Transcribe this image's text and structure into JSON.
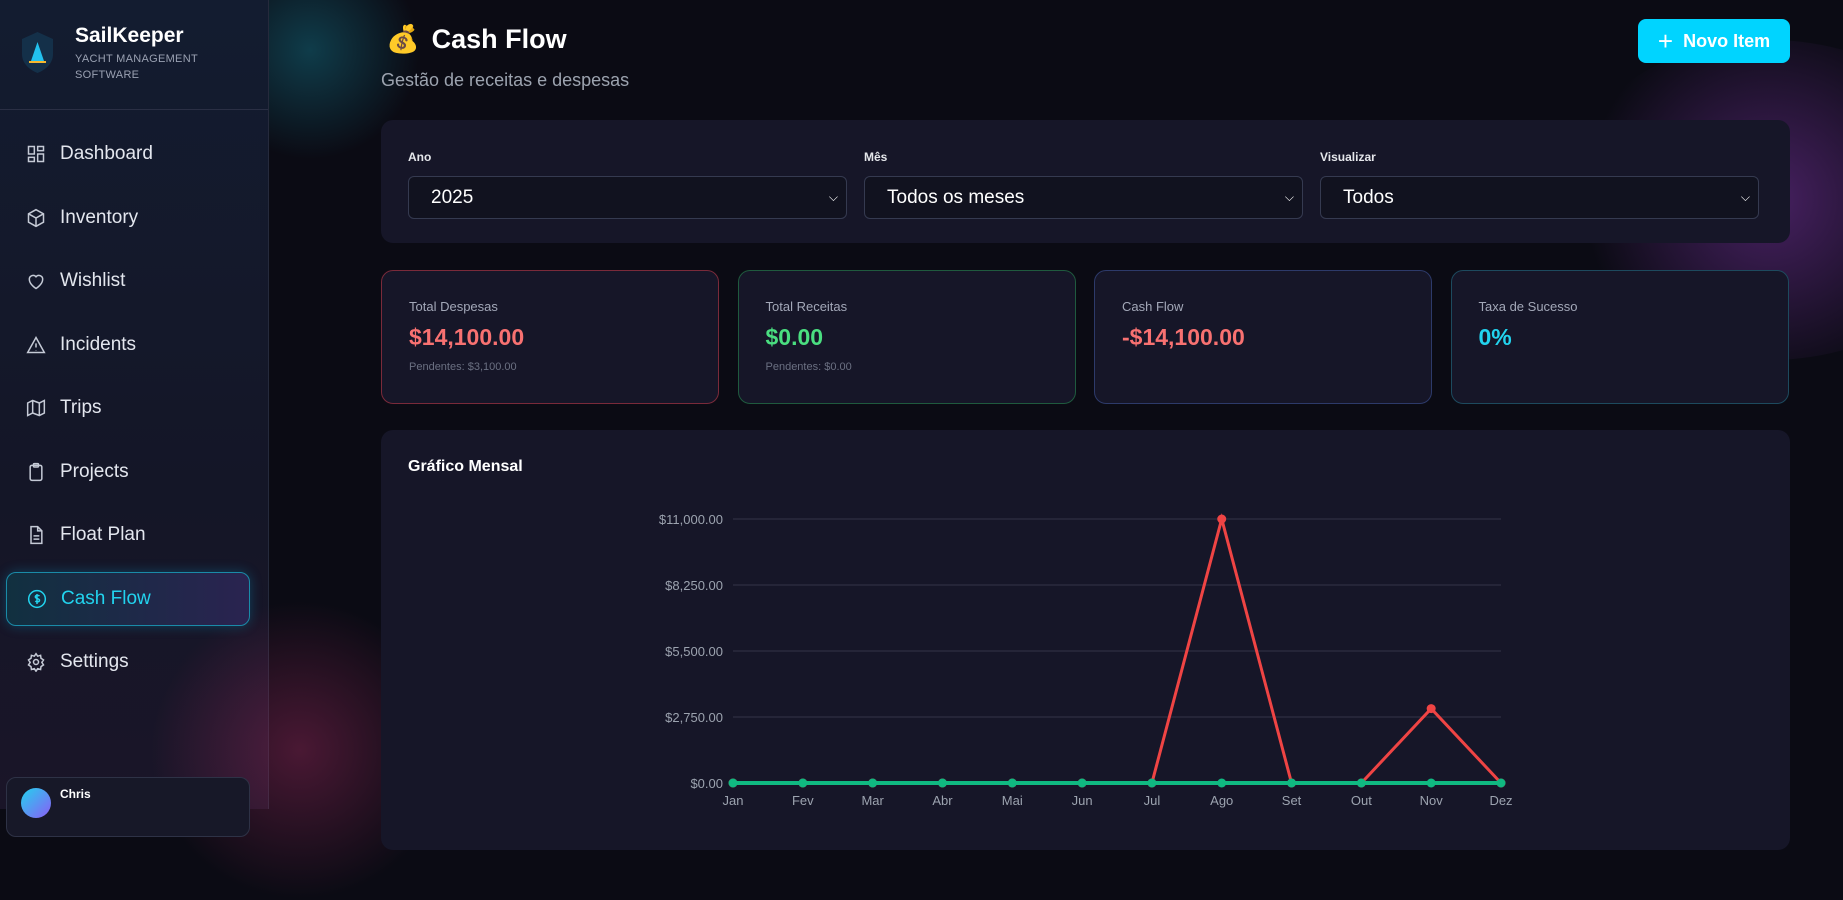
{
  "brand": {
    "name": "SailKeeper",
    "subtitle_line1": "YACHT MANAGEMENT",
    "subtitle_line2": "SOFTWARE"
  },
  "nav": [
    {
      "label": "Dashboard",
      "icon": "grid-icon"
    },
    {
      "label": "Inventory",
      "icon": "box-icon"
    },
    {
      "label": "Wishlist",
      "icon": "heart-icon"
    },
    {
      "label": "Incidents",
      "icon": "alert-triangle-icon"
    },
    {
      "label": "Trips",
      "icon": "map-icon"
    },
    {
      "label": "Projects",
      "icon": "clipboard-icon"
    },
    {
      "label": "Float Plan",
      "icon": "file-icon"
    },
    {
      "label": "Cash Flow",
      "icon": "dollar-circle-icon",
      "active": true
    },
    {
      "label": "Settings",
      "icon": "gear-icon"
    }
  ],
  "user": {
    "name": "Chris"
  },
  "header": {
    "emoji": "💰",
    "title": "Cash Flow",
    "subtitle": "Gestão de receitas e despesas",
    "new_button": "Novo Item"
  },
  "filters": [
    {
      "label": "Ano",
      "value": "2025"
    },
    {
      "label": "Mês",
      "value": "Todos os meses"
    },
    {
      "label": "Visualizar",
      "value": "Todos"
    }
  ],
  "cards": [
    {
      "label": "Total Despesas",
      "value": "$14,100.00",
      "sub": "Pendentes: $3,100.00",
      "color": "#f87171",
      "border": "#7a2a3a"
    },
    {
      "label": "Total Receitas",
      "value": "$0.00",
      "sub": "Pendentes: $0.00",
      "color": "#4ade80",
      "border": "#1f5a3e"
    },
    {
      "label": "Cash Flow",
      "value": "-$14,100.00",
      "color": "#f87171",
      "border": "#2d3a6a"
    },
    {
      "label": "Taxa de Sucesso",
      "value": "0%",
      "color": "#22d3ee",
      "border": "#1d4a5e"
    }
  ],
  "chart_data": {
    "type": "line",
    "title": "Gráfico Mensal",
    "categories": [
      "Jan",
      "Fev",
      "Mar",
      "Abr",
      "Mai",
      "Jun",
      "Jul",
      "Ago",
      "Set",
      "Out",
      "Nov",
      "Dez"
    ],
    "yticks": [
      "$0.00",
      "$2,750.00",
      "$5,500.00",
      "$8,250.00",
      "$11,000.00"
    ],
    "ylim": [
      0,
      11000
    ],
    "grid": true,
    "series": [
      {
        "color": "#ef4444",
        "values": [
          0,
          0,
          0,
          0,
          0,
          0,
          0,
          11000,
          0,
          0,
          3100,
          0
        ]
      },
      {
        "color": "#10b981",
        "values": [
          0,
          0,
          0,
          0,
          0,
          0,
          0,
          0,
          0,
          0,
          0,
          0
        ]
      }
    ]
  }
}
